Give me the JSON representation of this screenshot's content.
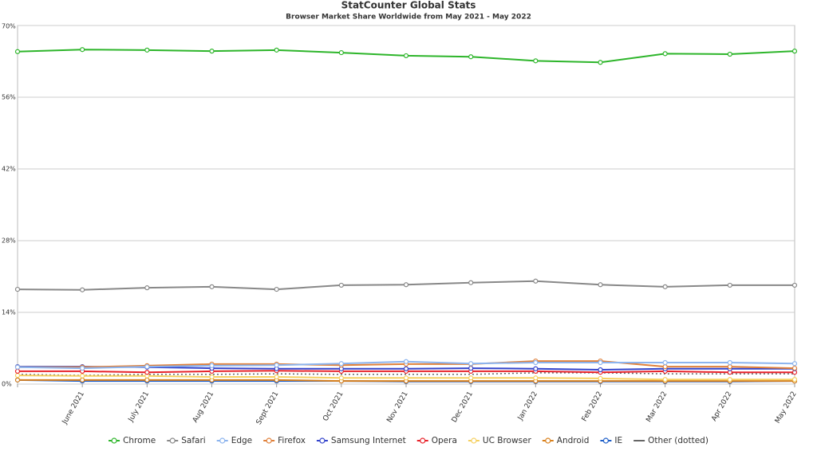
{
  "chart_data": {
    "type": "line",
    "title": "StatCounter Global Stats",
    "subtitle": "Browser Market Share Worldwide from May 2021 - May 2022",
    "categories": [
      null,
      "June 2021",
      "July 2021",
      "Aug 2021",
      "Sept 2021",
      "Oct 2021",
      "Nov 2021",
      "Dec 2021",
      "Jan 2022",
      "Feb 2022",
      "Mar 2022",
      "Apr 2022",
      "May 2022"
    ],
    "ylim": [
      0,
      70
    ],
    "yticks": [
      {
        "value": 0,
        "label": "0%"
      },
      {
        "value": 14,
        "label": "14%"
      },
      {
        "value": 28,
        "label": "28%"
      },
      {
        "value": 42,
        "label": "42%"
      },
      {
        "value": 56,
        "label": "56%"
      },
      {
        "value": 70,
        "label": "70%"
      }
    ],
    "grid": true,
    "legend": "bottom",
    "series": [
      {
        "name": "Chrome",
        "color": "#2db52a",
        "values": [
          64.9,
          65.3,
          65.2,
          65.0,
          65.2,
          64.7,
          64.1,
          63.9,
          63.1,
          62.8,
          64.5,
          64.4,
          65.0
        ]
      },
      {
        "name": "Safari",
        "color": "#888888",
        "values": [
          18.5,
          18.4,
          18.8,
          19.0,
          18.5,
          19.3,
          19.4,
          19.8,
          20.1,
          19.4,
          19.0,
          19.3,
          19.3
        ]
      },
      {
        "name": "Edge",
        "color": "#8cb4ee",
        "values": [
          3.3,
          3.1,
          3.4,
          3.6,
          3.7,
          4.0,
          4.4,
          4.0,
          4.2,
          4.2,
          4.2,
          4.2,
          4.0
        ]
      },
      {
        "name": "Firefox",
        "color": "#e0803a",
        "values": [
          3.3,
          3.3,
          3.6,
          3.9,
          3.9,
          3.7,
          3.9,
          3.9,
          4.5,
          4.5,
          3.4,
          3.4,
          3.1
        ]
      },
      {
        "name": "Samsung Internet",
        "color": "#3344cc",
        "values": [
          3.4,
          3.4,
          3.3,
          3.1,
          3.0,
          3.0,
          3.0,
          3.1,
          3.0,
          2.8,
          3.0,
          3.0,
          3.0
        ]
      },
      {
        "name": "Opera",
        "color": "#e8222a",
        "values": [
          2.5,
          2.5,
          2.3,
          2.5,
          2.6,
          2.5,
          2.5,
          2.5,
          2.5,
          2.3,
          2.5,
          2.3,
          2.3
        ]
      },
      {
        "name": "UC Browser",
        "color": "#f5d060",
        "values": [
          1.7,
          1.6,
          1.6,
          1.4,
          1.4,
          1.2,
          1.2,
          1.2,
          1.2,
          1.1,
          0.9,
          0.9,
          0.9
        ]
      },
      {
        "name": "Android",
        "color": "#d9801c",
        "values": [
          0.8,
          0.8,
          0.8,
          0.8,
          0.8,
          0.6,
          0.6,
          0.6,
          0.6,
          0.6,
          0.6,
          0.6,
          0.6
        ]
      },
      {
        "name": "IE",
        "color": "#1e5ec8",
        "values": [
          0.8,
          0.6,
          0.6,
          0.6,
          0.6,
          0.6,
          0.5,
          0.5,
          0.5,
          0.5,
          0.5,
          0.5,
          0.6
        ]
      },
      {
        "name": "Other (dotted)",
        "color": "#666666",
        "dash": "dotted",
        "values": [
          1.9,
          1.7,
          1.9,
          1.9,
          2.0,
          1.9,
          1.9,
          1.9,
          2.2,
          2.2,
          2.0,
          2.0,
          2.0
        ]
      }
    ]
  }
}
